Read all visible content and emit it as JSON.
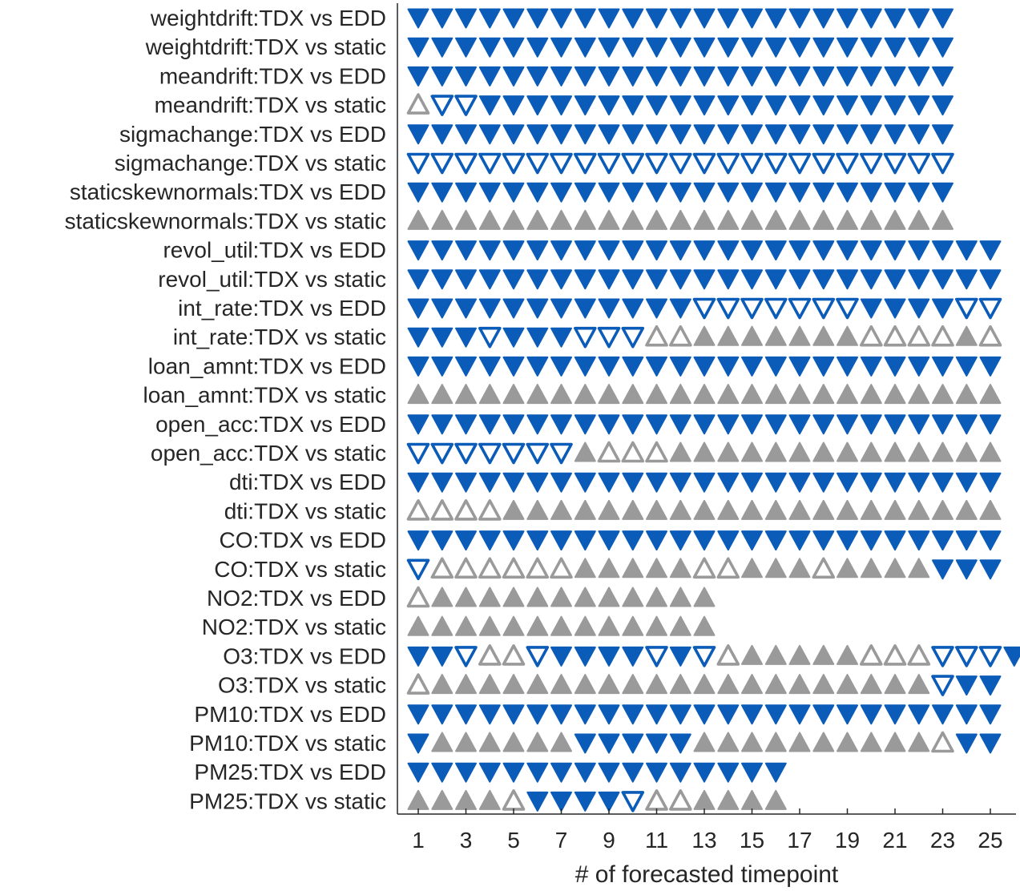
{
  "chart_data": {
    "type": "scatter",
    "title": "",
    "xlabel": "# of forecasted timepoint",
    "ylabel": "",
    "xlim": [
      0,
      26
    ],
    "xticks": [
      1,
      3,
      5,
      7,
      9,
      11,
      13,
      15,
      17,
      19,
      21,
      23,
      25
    ],
    "grid": false,
    "legend": "none",
    "colors": {
      "down": "#0b5cb8",
      "up": "#9a9a9a"
    },
    "symbol_key": {
      "D": "filled down triangle (blue)",
      "d": "hollow down triangle (blue)",
      "U": "filled up triangle (gray)",
      "u": "hollow up triangle (gray)"
    },
    "rows": [
      {
        "label": "weightdrift:TDX vs EDD",
        "markers": "DDDDDDDDDDDDDDDDDDDDDDD"
      },
      {
        "label": "weightdrift:TDX vs static",
        "markers": "DDDDDDDDDDDDDDDDDDDDDDD"
      },
      {
        "label": "meandrift:TDX vs EDD",
        "markers": "DDDDDDDDDDDDDDDDDDDDDDD"
      },
      {
        "label": "meandrift:TDX vs static",
        "markers": "uddDDDDDDDDDDDDDDDDDDDD"
      },
      {
        "label": "sigmachange:TDX vs EDD",
        "markers": "DDDDDDDDDDDDDDDDDDDDDDD"
      },
      {
        "label": "sigmachange:TDX vs static",
        "markers": "ddddddddddddddddddddddd"
      },
      {
        "label": "staticskewnormals:TDX vs EDD",
        "markers": "DDDDDDDDDDDDDDDDDDDDDDD"
      },
      {
        "label": "staticskewnormals:TDX vs static",
        "markers": "UUUUUUUUUUUUUUUUUUUUUUU"
      },
      {
        "label": "revol_util:TDX vs EDD",
        "markers": "DDDDDDDDDDDDDDDDDDDDDDDDD"
      },
      {
        "label": "revol_util:TDX vs static",
        "markers": "DDDDDDDDDDDDDDDDDDDDDDDDD"
      },
      {
        "label": "int_rate:TDX vs EDD",
        "markers": "DDDDDDDDDDDDdddddddDDDDdd"
      },
      {
        "label": "int_rate:TDX vs static",
        "markers": "DDDdDDDddduuUUUUUUUuuuuUu"
      },
      {
        "label": "loan_amnt:TDX vs EDD",
        "markers": "DDDDDDDDDDDDDDDDDDDDDDDDD"
      },
      {
        "label": "loan_amnt:TDX vs static",
        "markers": "UUUUUUUUUUUUUUUUUUUUUUUUU"
      },
      {
        "label": "open_acc:TDX vs EDD",
        "markers": "DDDDDDDDDDDDDDDDDDDDDDDDD"
      },
      {
        "label": "open_acc:TDX vs static",
        "markers": "dddddddUuuuUUUUUUUUUUUUUU"
      },
      {
        "label": "dti:TDX vs EDD",
        "markers": "DDDDDDDDDDDDDDDDDDDDDDDDD"
      },
      {
        "label": "dti:TDX vs static",
        "markers": "uuuuUUUUUUUUUUUUUUUUUUUUU"
      },
      {
        "label": "CO:TDX vs EDD",
        "markers": "DDDDDDDDDDDDDDDDDDDDDDDDD"
      },
      {
        "label": "CO:TDX vs static",
        "markers": "duuuuuuUUUUUuuUUUuUUUUDDD"
      },
      {
        "label": "NO2:TDX vs EDD",
        "markers": "uUUUUUUUUUUUU"
      },
      {
        "label": "NO2:TDX vs static",
        "markers": "UUUUUUUUUUUUU"
      },
      {
        "label": "O3:TDX vs EDD",
        "markers": "DDduudDDDDdDduUUUUUuuudddD"
      },
      {
        "label": "O3:TDX vs static",
        "markers": "uUUUUUUUUUUUUUUUUUUUUUdDD"
      },
      {
        "label": "PM10:TDX vs EDD",
        "markers": "DDDDDDDDDDDDDDDDDDDDDDDDD"
      },
      {
        "label": "PM10:TDX vs static",
        "markers": "DUUUUUUDDDDDUUUUUUUUUUuDD"
      },
      {
        "label": "PM25:TDX vs EDD",
        "markers": "DDDDDDDDDDDDDDDD"
      },
      {
        "label": "PM25:TDX vs static",
        "markers": "UUUUuDDDDduuUUUU"
      }
    ]
  }
}
